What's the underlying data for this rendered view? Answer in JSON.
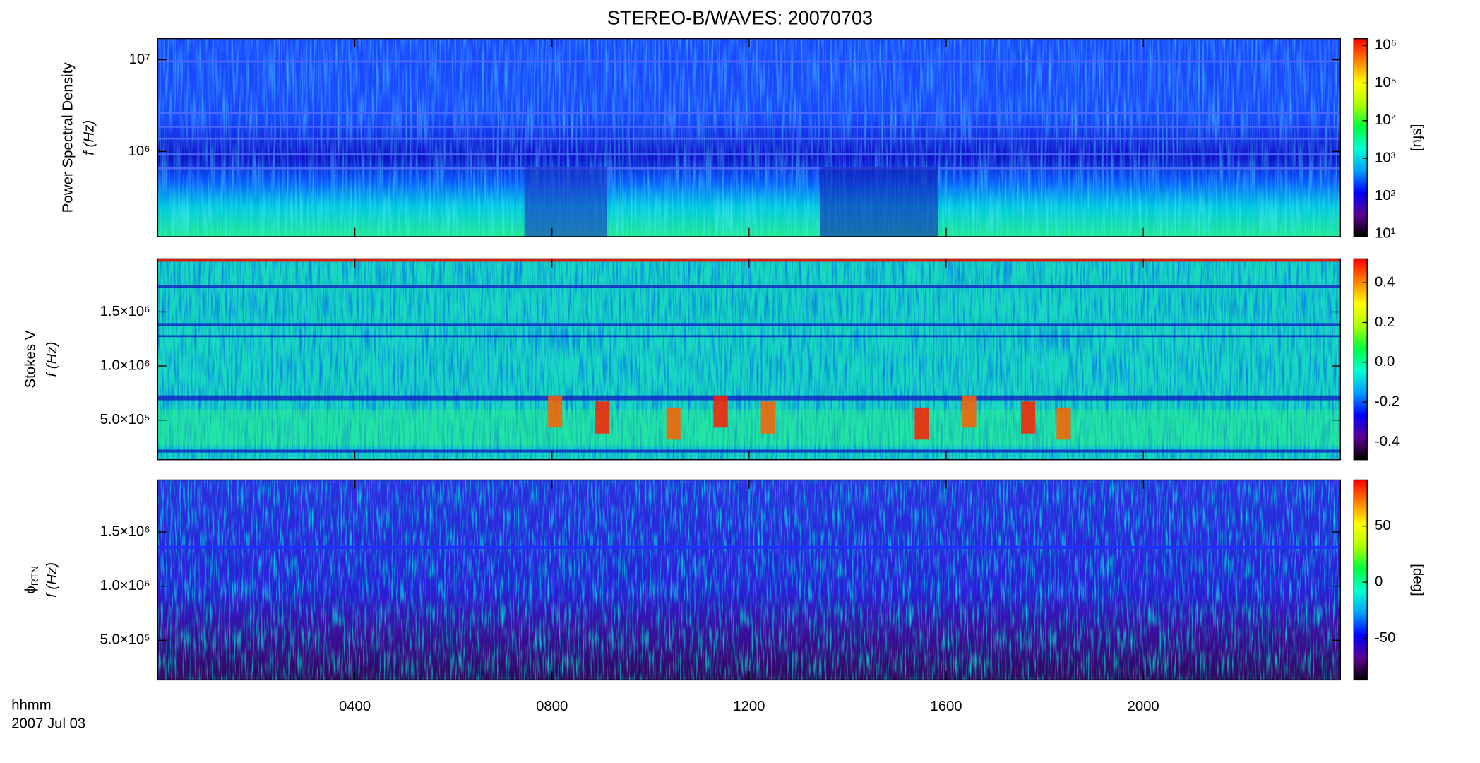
{
  "colormap": [
    "#000000",
    "#5a0090",
    "#0000ff",
    "#00a0ff",
    "#00ffd0",
    "#00ff40",
    "#b0ff00",
    "#ffff00",
    "#ff8000",
    "#ff0000"
  ],
  "chart_data": [
    {
      "type": "spectrogram",
      "title": "STEREO-B/WAVES: 20070703",
      "ylabel": [
        "Power Spectral Density",
        "f (Hz)"
      ],
      "ylog": true,
      "ylim": [
        118000,
        17000000
      ],
      "yticks": [
        {
          "value": 1000000,
          "label": "10⁶"
        },
        {
          "value": 10000000,
          "label": "10⁷"
        }
      ],
      "xlim": [
        0,
        1440
      ],
      "xticks": [
        240,
        480,
        720,
        960,
        1200
      ],
      "colorbar": {
        "label": "[sfu]",
        "log": true,
        "lim": [
          8.4,
          1500000
        ],
        "ticks": [
          {
            "value": 10,
            "label": "10¹"
          },
          {
            "value": 100,
            "label": "10²"
          },
          {
            "value": 1000,
            "label": "10³"
          },
          {
            "value": 10000,
            "label": "10⁴"
          },
          {
            "value": 100000,
            "label": "10⁵"
          },
          {
            "value": 1000000,
            "label": "10⁶"
          }
        ]
      }
    },
    {
      "type": "spectrogram",
      "ylabel": [
        "Stokes V",
        "f (Hz)"
      ],
      "ylog": false,
      "ylim": [
        134000,
        1990000
      ],
      "yticks": [
        {
          "value": 500000,
          "label": "5.0×10⁵"
        },
        {
          "value": 1000000,
          "label": "1.0×10⁶"
        },
        {
          "value": 1500000,
          "label": "1.5×10⁶"
        }
      ],
      "xlim": [
        0,
        1440
      ],
      "xticks": [
        240,
        480,
        720,
        960,
        1200
      ],
      "colorbar": {
        "log": false,
        "lim": [
          -0.49,
          0.52
        ],
        "ticks": [
          -0.4,
          -0.2,
          {
            "value": 0,
            "label": "0.0"
          },
          0.2,
          0.4
        ]
      }
    },
    {
      "type": "spectrogram",
      "ylabel": [
        "ϕ",
        "f (Hz)"
      ],
      "ylabel_sub": "RTN",
      "ylog": false,
      "ylim": [
        134000,
        1980000
      ],
      "yticks": [
        {
          "value": 500000,
          "label": "5.0×10⁵"
        },
        {
          "value": 1000000,
          "label": "1.0×10⁶"
        },
        {
          "value": 1500000,
          "label": "1.5×10⁶"
        }
      ],
      "xlim": [
        0,
        1440
      ],
      "xticks": [
        {
          "value": 240,
          "label": "0400"
        },
        {
          "value": 480,
          "label": "0800"
        },
        {
          "value": 720,
          "label": "1200"
        },
        {
          "value": 960,
          "label": "1600"
        },
        {
          "value": 1200,
          "label": "2000"
        }
      ],
      "xlabel": "hhmm",
      "date_label": "2007 Jul 03",
      "colorbar": {
        "label": "[deg]",
        "log": false,
        "lim": [
          -87,
          91
        ],
        "ticks": [
          -50,
          0,
          50
        ]
      }
    }
  ]
}
